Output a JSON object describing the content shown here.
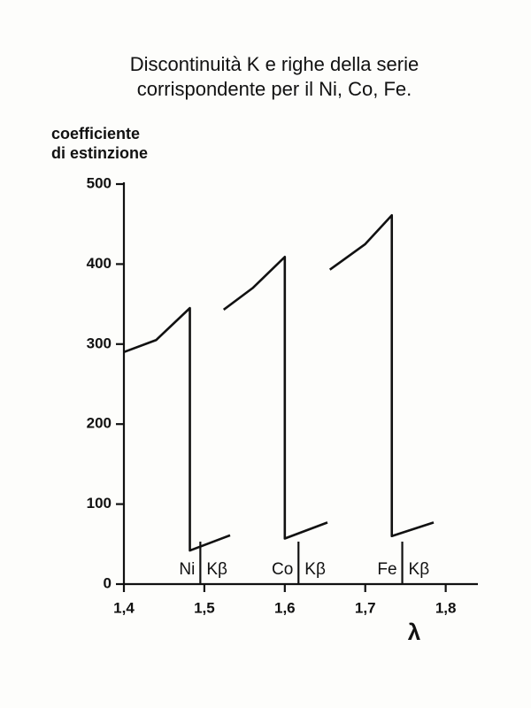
{
  "chart_data": {
    "type": "line",
    "title": [
      "Discontinuità K e righe della serie",
      "corrispondente per il Ni, Co, Fe."
    ],
    "y_label": [
      "coefficiente",
      "di estinzione"
    ],
    "x_label": "λ",
    "color": "#111111",
    "series": [
      {
        "x": [
          1.4,
          1.44,
          1.482,
          1.482,
          1.532
        ],
        "values": [
          290,
          305,
          345,
          42,
          61
        ]
      },
      {
        "x": [
          1.524,
          1.56,
          1.6,
          1.6,
          1.653
        ],
        "values": [
          343,
          370,
          409,
          57,
          77
        ]
      },
      {
        "x": [
          1.656,
          1.7,
          1.733,
          1.733,
          1.785
        ],
        "values": [
          393,
          425,
          461,
          60,
          77
        ]
      }
    ],
    "edges": [
      {
        "x": 1.495,
        "element": "Ni",
        "line": "Kβ"
      },
      {
        "x": 1.617,
        "element": "Co",
        "line": "Kβ"
      },
      {
        "x": 1.746,
        "element": "Fe",
        "line": "Kβ"
      }
    ],
    "xlim": [
      1.4,
      1.84
    ],
    "xticks": [
      {
        "value": 1.4,
        "label": "1,4"
      },
      {
        "value": 1.5,
        "label": "1,5"
      },
      {
        "value": 1.6,
        "label": "1,6"
      },
      {
        "value": 1.7,
        "label": "1,7"
      },
      {
        "value": 1.8,
        "label": "1,8"
      }
    ],
    "ylim": [
      0,
      500
    ],
    "yticks": [
      0,
      100,
      200,
      300,
      400,
      500
    ]
  }
}
